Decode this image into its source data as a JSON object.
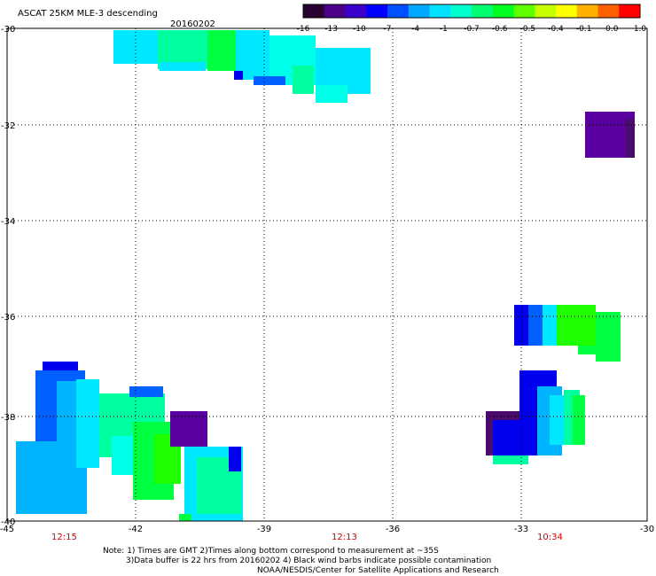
{
  "header": {
    "title": "ASCAT 25KM MLE-3 descending",
    "date": "20160202"
  },
  "colorbar": {
    "labels": [
      "-16",
      "-13",
      "-10",
      "-7",
      "-4",
      "-1",
      "-0.7",
      "-0.6",
      "-0.5",
      "-0.4",
      "-0.1",
      "0.0",
      "1.0"
    ],
    "colors": [
      "#2a0033",
      "#4a0088",
      "#3a00cc",
      "#0000ff",
      "#0050ff",
      "#00a8ff",
      "#00e0ff",
      "#00ffcc",
      "#00ff70",
      "#00ff20",
      "#60ff00",
      "#c8ff00",
      "#ffff00",
      "#ffb000",
      "#ff6000",
      "#ff0000"
    ]
  },
  "axes": {
    "x_ticks": [
      "-45",
      "-42",
      "-39",
      "-36",
      "-33",
      "-30"
    ],
    "y_ticks": [
      "-30",
      "-32",
      "-34",
      "-36",
      "-38",
      "-40"
    ]
  },
  "time_labels": [
    {
      "text": "12:15",
      "color": "#cc0000"
    },
    {
      "text": "12:13",
      "color": "#cc0000"
    },
    {
      "text": "10:34",
      "color": "#cc0000"
    }
  ],
  "notes": {
    "line1": "Note: 1) Times are GMT 2)Times along bottom correspond to measurement at ~35S",
    "line2": "3)Data buffer is 22 hrs from 20160202 4) Black wind barbs indicate possible contamination",
    "line3": "NOAA/NESDIS/Center for Satellite Applications and Research"
  },
  "swath_colors": {
    "dark_purple": "#4a0a6e",
    "purple": "#5a00a0",
    "blue": "#0000ee",
    "mid_blue": "#0060ff",
    "sky": "#00b4ff",
    "light_cyan": "#00e8ff",
    "cyan": "#00ffe8",
    "aqua_green": "#00ffa0",
    "green": "#00ff40",
    "bright_green": "#20ff00"
  }
}
